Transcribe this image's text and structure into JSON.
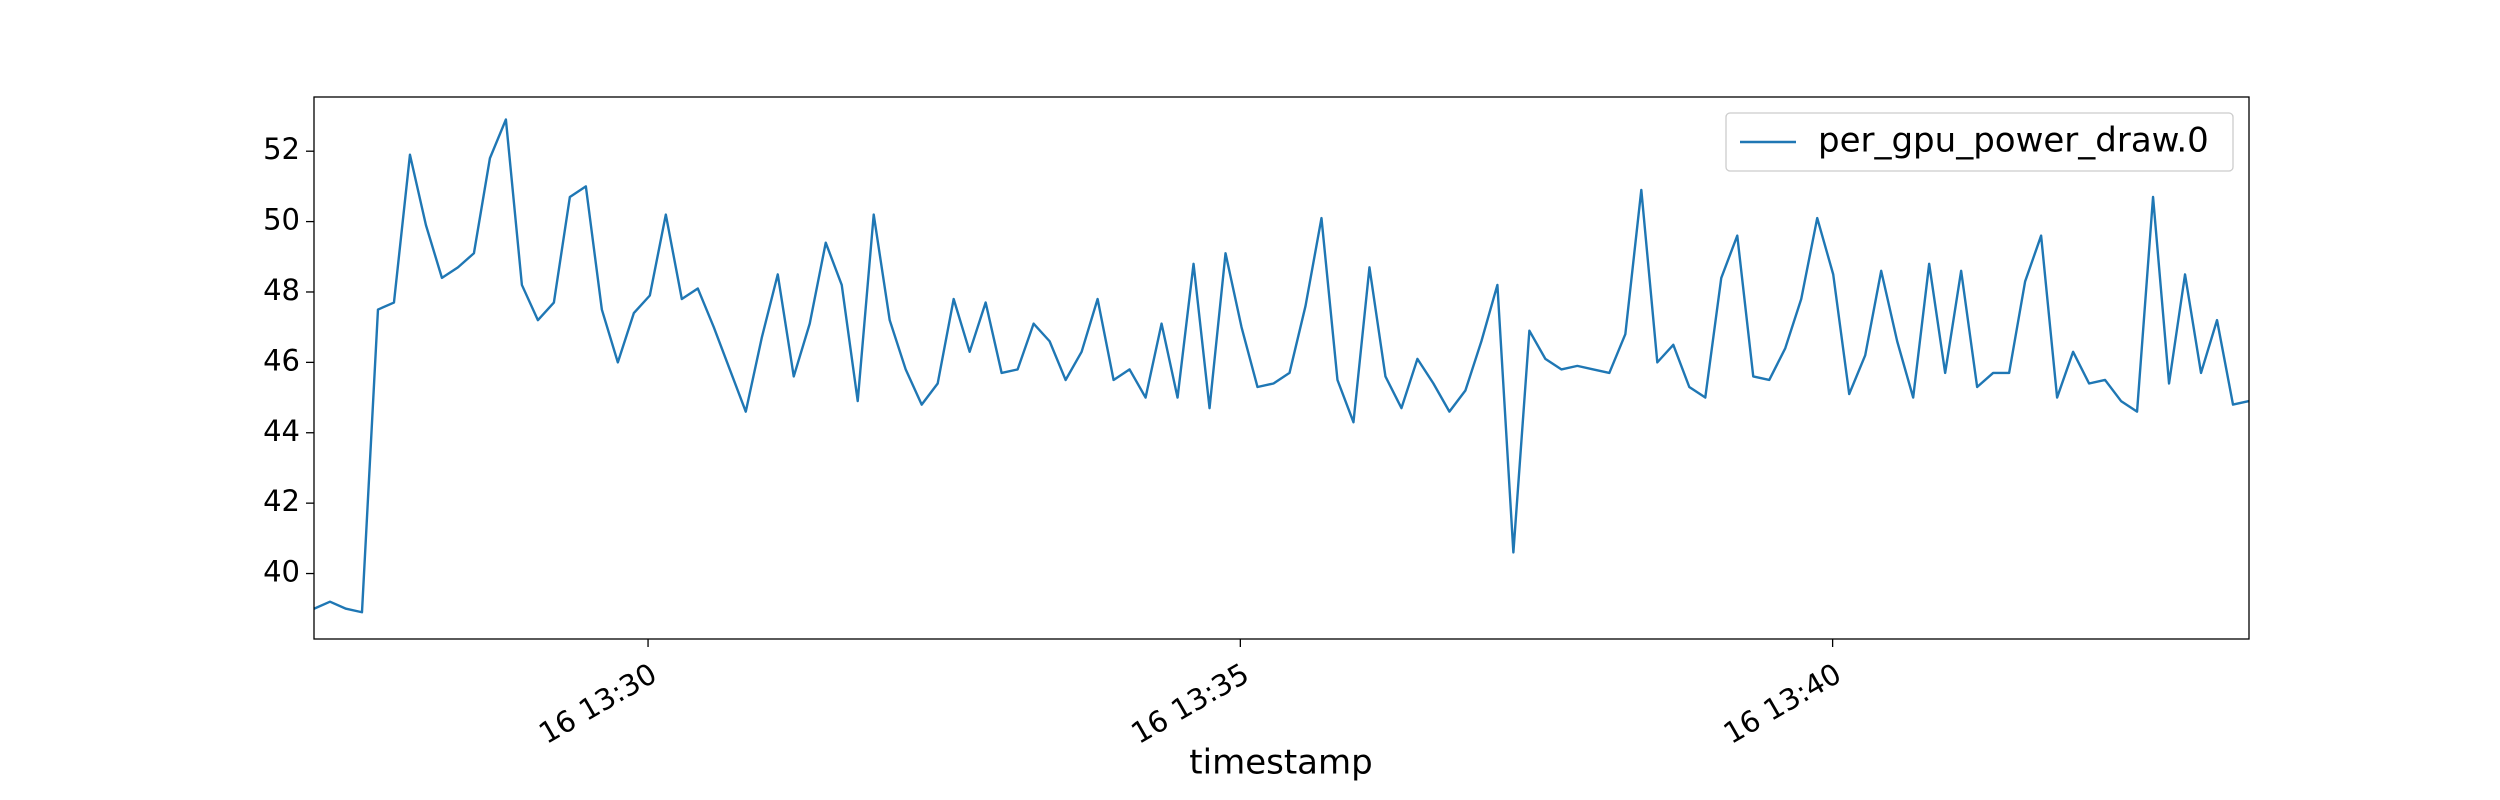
{
  "chart_data": {
    "type": "line",
    "x_label": "timestamp",
    "x": [
      27.18,
      27.315,
      27.45,
      27.585,
      27.72,
      27.855,
      27.99,
      28.125,
      28.26,
      28.395,
      28.53,
      28.665,
      28.8,
      28.935,
      29.07,
      29.205,
      29.34,
      29.475,
      29.61,
      29.745,
      29.88,
      30.015,
      30.15,
      30.285,
      30.42,
      30.555,
      30.69,
      30.825,
      30.96,
      31.095,
      31.23,
      31.365,
      31.5,
      31.635,
      31.77,
      31.905,
      32.04,
      32.175,
      32.31,
      32.445,
      32.58,
      32.715,
      32.85,
      32.985,
      33.12,
      33.255,
      33.39,
      33.525,
      33.66,
      33.795,
      33.93,
      34.065,
      34.2,
      34.335,
      34.47,
      34.605,
      34.74,
      34.875,
      35.01,
      35.145,
      35.28,
      35.415,
      35.55,
      35.685,
      35.82,
      35.955,
      36.09,
      36.225,
      36.36,
      36.495,
      36.63,
      36.765,
      36.9,
      37.035,
      37.17,
      37.305,
      37.44,
      37.575,
      37.71,
      37.845,
      37.98,
      38.115,
      38.25,
      38.385,
      38.52,
      38.655,
      38.79,
      38.925,
      39.06,
      39.195,
      39.33,
      39.465,
      39.6,
      39.735,
      39.87,
      40.005,
      40.14,
      40.275,
      40.41,
      40.545,
      40.68,
      40.815,
      40.95,
      41.085,
      41.22,
      41.355,
      41.49,
      41.625,
      41.76,
      41.895,
      42.03,
      42.165,
      42.3,
      42.435,
      42.57,
      42.705,
      42.84,
      42.975,
      43.11,
      43.245,
      43.38,
      43.515
    ],
    "series": [
      {
        "name": "per_gpu_power_draw.0",
        "color": "#1f77b4",
        "values": [
          39.0,
          39.2,
          39.0,
          38.9,
          47.5,
          47.7,
          51.9,
          49.9,
          48.4,
          48.7,
          49.1,
          51.8,
          52.9,
          48.2,
          47.2,
          47.7,
          50.7,
          51.0,
          47.5,
          46.0,
          47.4,
          47.9,
          50.2,
          47.8,
          48.1,
          47.0,
          45.8,
          44.6,
          46.7,
          48.5,
          45.6,
          47.1,
          49.4,
          48.2,
          44.9,
          50.2,
          47.2,
          45.8,
          44.8,
          45.4,
          47.8,
          46.3,
          47.7,
          45.7,
          45.8,
          47.1,
          46.6,
          45.5,
          46.3,
          47.8,
          45.5,
          45.8,
          45.0,
          47.1,
          45.0,
          48.8,
          44.7,
          49.1,
          47.0,
          45.3,
          45.4,
          45.7,
          47.6,
          50.1,
          45.5,
          44.3,
          48.7,
          45.6,
          44.7,
          46.1,
          45.4,
          44.6,
          45.2,
          46.6,
          48.2,
          40.6,
          46.9,
          46.1,
          45.8,
          45.9,
          45.8,
          45.7,
          46.8,
          50.9,
          46.0,
          46.5,
          45.3,
          45.0,
          48.4,
          49.6,
          45.6,
          45.5,
          46.4,
          47.8,
          50.1,
          48.5,
          45.1,
          46.2,
          48.6,
          46.6,
          45.0,
          48.8,
          45.7,
          48.6,
          45.3,
          45.7,
          45.7,
          48.3,
          49.6,
          45.0,
          46.3,
          45.4,
          45.5,
          44.9,
          44.6,
          50.7,
          45.4,
          48.5,
          45.7,
          47.2,
          44.8,
          44.9
        ]
      }
    ],
    "xlim": [
      27.18,
      43.515
    ],
    "xticks": [
      {
        "value": 30,
        "label": "16 13:30"
      },
      {
        "value": 35,
        "label": "16 13:35"
      },
      {
        "value": 40,
        "label": "16 13:40"
      }
    ],
    "ylim": [
      38.14,
      53.54
    ],
    "yticks": [
      40,
      42,
      44,
      46,
      48,
      50,
      52
    ],
    "legend": "upper right"
  }
}
